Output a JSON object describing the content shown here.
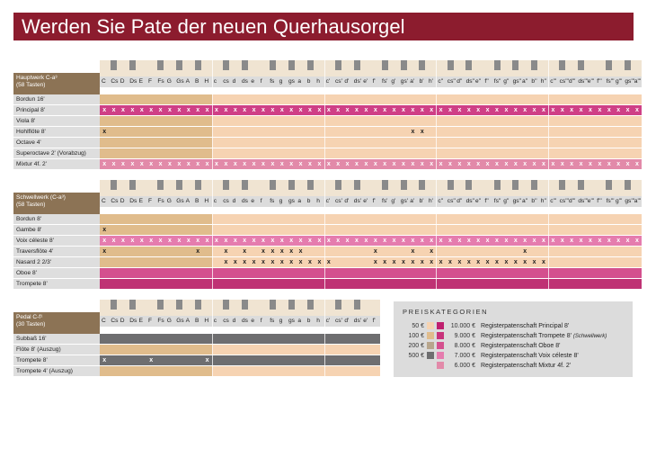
{
  "title": "Werden Sie Pate der neuen Querhausorgel",
  "colors": {
    "title_bg": "#8c1c2e",
    "tier_50": "#f6d3b2",
    "tier_100": "#e0bc8c",
    "tier_200": "#b7a58c",
    "tier_500": "#6e6e70",
    "principal": "#cf3f86",
    "trompete": "#bf3274",
    "oboe": "#d4508e",
    "voix": "#e57cae",
    "mixtur": "#e28aa9"
  },
  "note_names": [
    "C",
    "Cs",
    "D",
    "Ds",
    "E",
    "F",
    "Fs",
    "G",
    "Gs",
    "A",
    "B",
    "H",
    "c",
    "cs",
    "d",
    "ds",
    "e",
    "f",
    "fs",
    "g",
    "gs",
    "a",
    "b",
    "h",
    "c'",
    "cs'",
    "d'",
    "ds'",
    "e'",
    "f'",
    "fs'",
    "g'",
    "gs'",
    "a'",
    "b'",
    "h'",
    "c''",
    "cs''",
    "d''",
    "ds''",
    "e''",
    "f''",
    "fs''",
    "g''",
    "gs''",
    "a''",
    "b''",
    "h''",
    "c'''",
    "cs'''",
    "d'''",
    "ds'''",
    "e'''",
    "f'''",
    "fs'''",
    "g'''",
    "gs'''",
    "a'''"
  ],
  "hauptwerk": {
    "title": "Hauptwerk C-a³",
    "subtitle": "(58 Tasten)",
    "stops": [
      {
        "name": "Bordun 16'",
        "type": "plain",
        "x": []
      },
      {
        "name": "Principal 8'",
        "type": "principal",
        "x": "all"
      },
      {
        "name": "Viola 8'",
        "type": "plain",
        "x": []
      },
      {
        "name": "Hohlflöte 8'",
        "type": "plain",
        "x": [
          0,
          33,
          34
        ]
      },
      {
        "name": "Octave 4'",
        "type": "plain",
        "x": []
      },
      {
        "name": "Superoctave 2' (Vorabzug)",
        "type": "plain",
        "x": []
      },
      {
        "name": "Mixtur 4f. 2'",
        "type": "mixtur",
        "x": "all"
      }
    ]
  },
  "schwellwerk": {
    "title": "Schwellwerk (C-a³)",
    "subtitle": "(58 Tasten)",
    "stops": [
      {
        "name": "Bordun 8'",
        "type": "plain",
        "x": []
      },
      {
        "name": "Gambe 8'",
        "type": "plain",
        "x": [
          0
        ]
      },
      {
        "name": "Voix céleste 8'",
        "type": "voix",
        "x": "all"
      },
      {
        "name": "Traversflöte 4'",
        "type": "plain",
        "x": [
          0,
          10,
          13,
          15,
          17,
          18,
          19,
          20,
          21,
          29,
          33,
          35,
          45
        ]
      },
      {
        "name": "Nasard 2 2/3'",
        "type": "plain",
        "x": [
          13,
          14,
          15,
          16,
          17,
          18,
          19,
          20,
          21,
          22,
          23,
          24,
          29,
          30,
          31,
          32,
          33,
          34,
          35,
          36,
          37,
          38,
          39,
          40,
          41,
          42,
          43,
          44,
          45,
          46,
          47
        ]
      },
      {
        "name": "Oboe 8'",
        "type": "oboe",
        "x": []
      },
      {
        "name": "Trompete 8'",
        "type": "trompete",
        "x": []
      }
    ]
  },
  "pedal": {
    "title": "Pedal C-f¹",
    "subtitle": "(30 Tasten)",
    "stops": [
      {
        "name": "Subbaß 16'",
        "type": "dark",
        "x": []
      },
      {
        "name": "Flöte 8' (Auszug)",
        "type": "plain",
        "x": []
      },
      {
        "name": "Trompete 8'",
        "type": "dark",
        "x": [
          0,
          5,
          11
        ]
      },
      {
        "name": "Trompete 4' (Auszug)",
        "type": "plain",
        "x": []
      }
    ]
  },
  "prices": {
    "title": "PREISKATEGORIEN",
    "tiers": [
      {
        "amount": "50 €",
        "swatch": "#f6d3b2"
      },
      {
        "amount": "100 €",
        "swatch": "#e0bc8c"
      },
      {
        "amount": "200 €",
        "swatch": "#b7a58c"
      },
      {
        "amount": "500 €",
        "swatch": "#6e6e70"
      }
    ],
    "sponsorships": [
      {
        "amount": "10.000 €",
        "swatch": "#bf1f6e",
        "text": "Registerpatenschaft Principal 8'",
        "note": ""
      },
      {
        "amount": "9.000 €",
        "swatch": "#c8337b",
        "text": "Registerpatenschaft Trompete 8'",
        "note": "(Schwellwerk)"
      },
      {
        "amount": "8.000 €",
        "swatch": "#d4508e",
        "text": "Registerpatenschaft Oboe 8'",
        "note": ""
      },
      {
        "amount": "7.000 €",
        "swatch": "#e57cae",
        "text": "Registerpatenschaft Voix céleste 8'",
        "note": ""
      },
      {
        "amount": "6.000 €",
        "swatch": "#e28aa9",
        "text": "Registerpatenschaft Mixtur 4f. 2'",
        "note": ""
      }
    ]
  }
}
